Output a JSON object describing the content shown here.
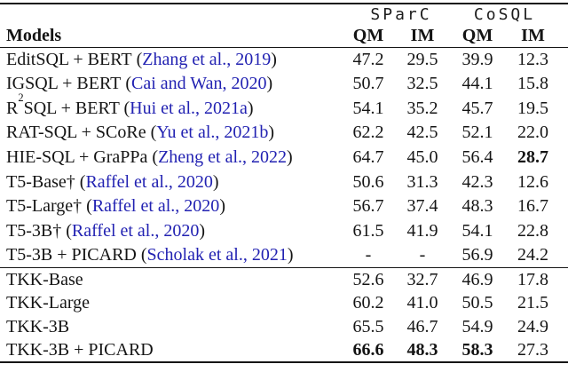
{
  "table": {
    "group_headers": {
      "sparc": "SParC",
      "cosql": "CoSQL"
    },
    "models_header": "Models",
    "sub_headers": [
      "QM",
      "IM",
      "QM",
      "IM"
    ],
    "rows": [
      {
        "m0": "EditSQL + BERT",
        "sup": "",
        "m1": "",
        "dag": "",
        "cpre": " (",
        "cite": "Zhang et al., 2019",
        "cpost": ")",
        "v": [
          "47.2",
          "29.5",
          "39.9",
          "12.3"
        ]
      },
      {
        "m0": "IGSQL + BERT",
        "sup": "",
        "m1": "",
        "dag": "",
        "cpre": " (",
        "cite": "Cai and Wan, 2020",
        "cpost": ")",
        "v": [
          "50.7",
          "32.5",
          "44.1",
          "15.8"
        ]
      },
      {
        "m0": "R",
        "sup": "2",
        "m1": "SQL + BERT",
        "dag": "",
        "cpre": " (",
        "cite": "Hui et al., 2021a",
        "cpost": ")",
        "v": [
          "54.1",
          "35.2",
          "45.7",
          "19.5"
        ]
      },
      {
        "m0": "RAT-SQL + SCoRe",
        "sup": "",
        "m1": "",
        "dag": "",
        "cpre": " (",
        "cite": "Yu et al., 2021b",
        "cpost": ")",
        "v": [
          "62.2",
          "42.5",
          "52.1",
          "22.0"
        ]
      },
      {
        "m0": "HIE-SQL + GraPPa",
        "sup": "",
        "m1": "",
        "dag": "",
        "cpre": " (",
        "cite": "Zheng et al., 2022",
        "cpost": ")",
        "v": [
          "64.7",
          "45.0",
          "56.4",
          "28.7"
        ]
      },
      {
        "m0": "T5-Base",
        "sup": "",
        "m1": "",
        "dag": "†",
        "cpre": " (",
        "cite": "Raffel et al., 2020",
        "cpost": ")",
        "v": [
          "50.6",
          "31.3",
          "42.3",
          "12.6"
        ]
      },
      {
        "m0": "T5-Large",
        "sup": "",
        "m1": "",
        "dag": "†",
        "cpre": " (",
        "cite": "Raffel et al., 2020",
        "cpost": ")",
        "v": [
          "56.7",
          "37.4",
          "48.3",
          "16.7"
        ]
      },
      {
        "m0": "T5-3B",
        "sup": "",
        "m1": "",
        "dag": "†",
        "cpre": " (",
        "cite": "Raffel et al., 2020",
        "cpost": ")",
        "v": [
          "61.5",
          "41.9",
          "54.1",
          "22.8"
        ]
      },
      {
        "m0": "T5-3B + PICARD",
        "sup": "",
        "m1": "",
        "dag": "",
        "cpre": " (",
        "cite": "Scholak et al., 2021",
        "cpost": ")",
        "v": [
          "-",
          "-",
          "56.9",
          "24.2"
        ]
      },
      {
        "m0": "TKK-Base",
        "sup": "",
        "m1": "",
        "dag": "",
        "cpre": "",
        "cite": "",
        "cpost": "",
        "v": [
          "52.6",
          "32.7",
          "46.9",
          "17.8"
        ]
      },
      {
        "m0": "TKK-Large",
        "sup": "",
        "m1": "",
        "dag": "",
        "cpre": "",
        "cite": "",
        "cpost": "",
        "v": [
          "60.2",
          "41.0",
          "50.5",
          "21.5"
        ]
      },
      {
        "m0": "TKK-3B",
        "sup": "",
        "m1": "",
        "dag": "",
        "cpre": "",
        "cite": "",
        "cpost": "",
        "v": [
          "65.5",
          "46.7",
          "54.9",
          "24.9"
        ]
      },
      {
        "m0": "TKK-3B + PICARD",
        "sup": "",
        "m1": "",
        "dag": "",
        "cpre": "",
        "cite": "",
        "cpost": "",
        "v": [
          "66.6",
          "48.3",
          "58.3",
          "27.3"
        ]
      }
    ]
  },
  "colors": {
    "citation_blue": "#2222b2",
    "rule_black": "#161616"
  }
}
